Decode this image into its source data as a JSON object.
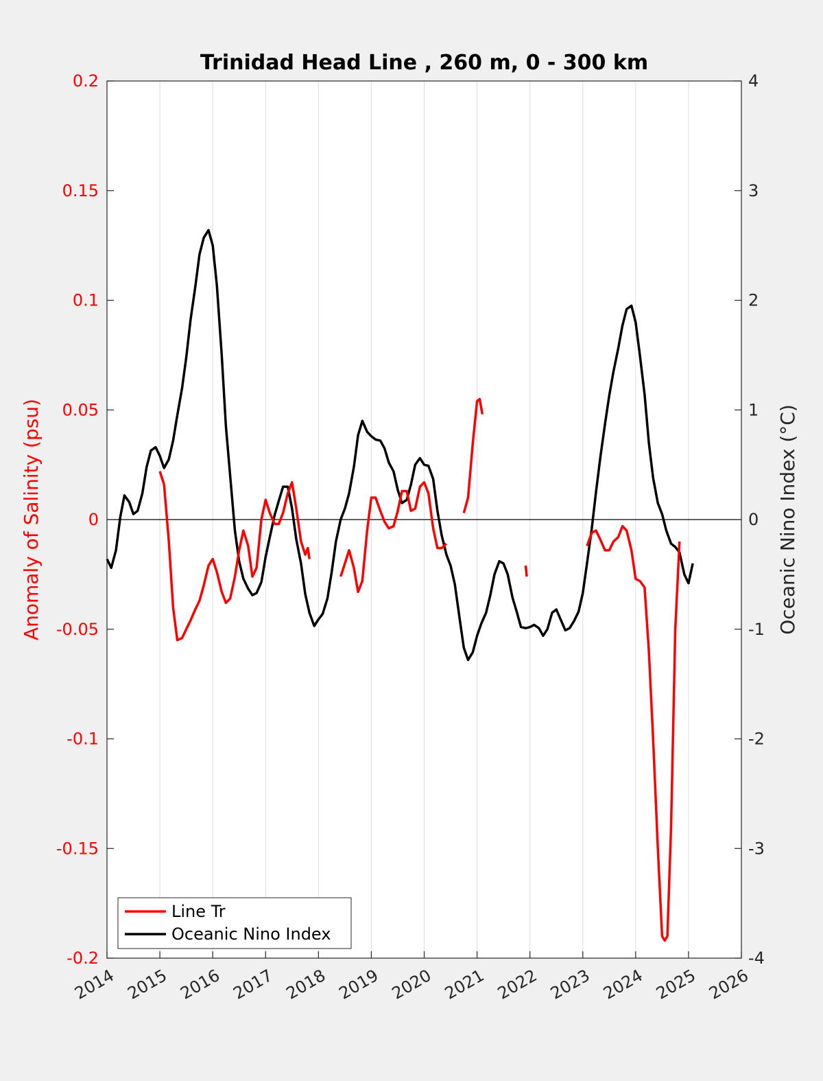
{
  "chart_data": {
    "type": "line",
    "title": "Trinidad Head Line , 260 m, 0 - 300 km",
    "ylabel": "Anomaly of Salinity (psu)",
    "y2label": "Oceanic Nino Index (°C)",
    "xlim": [
      2014,
      2026
    ],
    "ylim": [
      -0.2,
      0.2
    ],
    "y2lim": [
      -4,
      4
    ],
    "xticks": [
      "2014",
      "2015",
      "2016",
      "2017",
      "2018",
      "2019",
      "2020",
      "2021",
      "2022",
      "2023",
      "2024",
      "2025",
      "2026"
    ],
    "yticks": [
      "-0.2",
      "-0.15",
      "-0.1",
      "-0.05",
      "0",
      "0.05",
      "0.1",
      "0.15",
      "0.2"
    ],
    "y2ticks": [
      "-4",
      "-3",
      "-2",
      "-1",
      "0",
      "1",
      "2",
      "3",
      "4"
    ],
    "grid": "vertical",
    "legend_position": "bottom-left",
    "colors": {
      "salinity": "#ff0000",
      "oni": "#000000",
      "zero_line": "#000000"
    },
    "series": [
      {
        "name": "Line Tr",
        "axis": "left",
        "segments": [
          [
            [
              2015.0,
              0.022
            ],
            [
              2015.08,
              0.016
            ],
            [
              2015.17,
              -0.01
            ],
            [
              2015.25,
              -0.04
            ],
            [
              2015.33,
              -0.055
            ],
            [
              2015.42,
              -0.054
            ],
            [
              2015.5,
              -0.05
            ],
            [
              2015.58,
              -0.046
            ],
            [
              2015.67,
              -0.041
            ],
            [
              2015.75,
              -0.037
            ],
            [
              2015.83,
              -0.03
            ],
            [
              2015.92,
              -0.021
            ],
            [
              2016.0,
              -0.018
            ],
            [
              2016.08,
              -0.024
            ],
            [
              2016.17,
              -0.033
            ],
            [
              2016.25,
              -0.038
            ],
            [
              2016.33,
              -0.036
            ],
            [
              2016.42,
              -0.026
            ],
            [
              2016.5,
              -0.014
            ],
            [
              2016.58,
              -0.005
            ],
            [
              2016.67,
              -0.012
            ],
            [
              2016.75,
              -0.026
            ],
            [
              2016.83,
              -0.022
            ],
            [
              2016.92,
              0.0
            ],
            [
              2017.0,
              0.009
            ],
            [
              2017.08,
              0.003
            ],
            [
              2017.17,
              -0.002
            ],
            [
              2017.25,
              -0.002
            ],
            [
              2017.33,
              0.003
            ],
            [
              2017.42,
              0.012
            ],
            [
              2017.5,
              0.017
            ],
            [
              2017.58,
              0.005
            ],
            [
              2017.67,
              -0.01
            ],
            [
              2017.75,
              -0.016
            ],
            [
              2017.8,
              -0.013
            ],
            [
              2017.83,
              -0.018
            ]
          ],
          [
            [
              2018.42,
              -0.026
            ],
            [
              2018.5,
              -0.02
            ],
            [
              2018.58,
              -0.014
            ],
            [
              2018.67,
              -0.022
            ],
            [
              2018.75,
              -0.033
            ],
            [
              2018.83,
              -0.028
            ],
            [
              2018.92,
              -0.005
            ],
            [
              2019.0,
              0.01
            ],
            [
              2019.08,
              0.01
            ],
            [
              2019.17,
              0.004
            ],
            [
              2019.25,
              -0.001
            ],
            [
              2019.33,
              -0.004
            ],
            [
              2019.42,
              -0.003
            ],
            [
              2019.5,
              0.004
            ],
            [
              2019.58,
              0.013
            ],
            [
              2019.67,
              0.013
            ],
            [
              2019.75,
              0.004
            ],
            [
              2019.83,
              0.005
            ],
            [
              2019.92,
              0.015
            ],
            [
              2020.0,
              0.017
            ],
            [
              2020.08,
              0.012
            ],
            [
              2020.17,
              -0.004
            ],
            [
              2020.25,
              -0.013
            ],
            [
              2020.33,
              -0.013
            ],
            [
              2020.42,
              -0.011
            ]
          ],
          [
            [
              2020.75,
              0.003
            ],
            [
              2020.83,
              0.01
            ],
            [
              2020.92,
              0.035
            ],
            [
              2021.0,
              0.054
            ],
            [
              2021.05,
              0.055
            ],
            [
              2021.1,
              0.048
            ]
          ],
          [
            [
              2021.92,
              -0.021
            ],
            [
              2021.94,
              -0.026
            ]
          ],
          [
            [
              2023.08,
              -0.012
            ],
            [
              2023.17,
              -0.006
            ],
            [
              2023.25,
              -0.005
            ],
            [
              2023.33,
              -0.009
            ],
            [
              2023.42,
              -0.014
            ],
            [
              2023.5,
              -0.014
            ],
            [
              2023.58,
              -0.01
            ],
            [
              2023.67,
              -0.008
            ],
            [
              2023.75,
              -0.003
            ],
            [
              2023.83,
              -0.005
            ],
            [
              2023.92,
              -0.014
            ],
            [
              2024.0,
              -0.027
            ],
            [
              2024.08,
              -0.028
            ],
            [
              2024.17,
              -0.031
            ],
            [
              2024.25,
              -0.06
            ],
            [
              2024.33,
              -0.1
            ],
            [
              2024.42,
              -0.15
            ],
            [
              2024.5,
              -0.19
            ],
            [
              2024.55,
              -0.192
            ],
            [
              2024.6,
              -0.19
            ],
            [
              2024.67,
              -0.14
            ],
            [
              2024.75,
              -0.05
            ],
            [
              2024.83,
              -0.01
            ]
          ]
        ]
      },
      {
        "name": "Oceanic Nino Index",
        "axis": "right",
        "segments": [
          [
            [
              2014.0,
              -0.36
            ],
            [
              2014.08,
              -0.44
            ],
            [
              2014.17,
              -0.28
            ],
            [
              2014.25,
              0.02
            ],
            [
              2014.33,
              0.22
            ],
            [
              2014.42,
              0.16
            ],
            [
              2014.5,
              0.05
            ],
            [
              2014.58,
              0.08
            ],
            [
              2014.67,
              0.24
            ],
            [
              2014.75,
              0.48
            ],
            [
              2014.83,
              0.63
            ],
            [
              2014.92,
              0.66
            ],
            [
              2015.0,
              0.58
            ],
            [
              2015.08,
              0.47
            ],
            [
              2015.17,
              0.55
            ],
            [
              2015.25,
              0.72
            ],
            [
              2015.33,
              0.95
            ],
            [
              2015.42,
              1.2
            ],
            [
              2015.5,
              1.48
            ],
            [
              2015.58,
              1.82
            ],
            [
              2015.67,
              2.12
            ],
            [
              2015.75,
              2.42
            ],
            [
              2015.83,
              2.57
            ],
            [
              2015.92,
              2.64
            ],
            [
              2016.0,
              2.5
            ],
            [
              2016.08,
              2.13
            ],
            [
              2016.17,
              1.5
            ],
            [
              2016.25,
              0.85
            ],
            [
              2016.33,
              0.4
            ],
            [
              2016.42,
              -0.1
            ],
            [
              2016.5,
              -0.38
            ],
            [
              2016.58,
              -0.54
            ],
            [
              2016.67,
              -0.63
            ],
            [
              2016.75,
              -0.69
            ],
            [
              2016.83,
              -0.67
            ],
            [
              2016.92,
              -0.57
            ],
            [
              2017.0,
              -0.34
            ],
            [
              2017.08,
              -0.16
            ],
            [
              2017.17,
              0.04
            ],
            [
              2017.25,
              0.17
            ],
            [
              2017.33,
              0.3
            ],
            [
              2017.42,
              0.3
            ],
            [
              2017.5,
              0.1
            ],
            [
              2017.58,
              -0.18
            ],
            [
              2017.67,
              -0.4
            ],
            [
              2017.75,
              -0.68
            ],
            [
              2017.83,
              -0.85
            ],
            [
              2017.92,
              -0.97
            ],
            [
              2018.0,
              -0.91
            ],
            [
              2018.08,
              -0.86
            ],
            [
              2018.17,
              -0.72
            ],
            [
              2018.25,
              -0.48
            ],
            [
              2018.33,
              -0.2
            ],
            [
              2018.42,
              0.0
            ],
            [
              2018.5,
              0.1
            ],
            [
              2018.58,
              0.24
            ],
            [
              2018.67,
              0.48
            ],
            [
              2018.75,
              0.77
            ],
            [
              2018.83,
              0.9
            ],
            [
              2018.92,
              0.8
            ],
            [
              2019.0,
              0.76
            ],
            [
              2019.08,
              0.73
            ],
            [
              2019.17,
              0.72
            ],
            [
              2019.25,
              0.65
            ],
            [
              2019.33,
              0.52
            ],
            [
              2019.42,
              0.44
            ],
            [
              2019.5,
              0.27
            ],
            [
              2019.58,
              0.15
            ],
            [
              2019.67,
              0.18
            ],
            [
              2019.75,
              0.32
            ],
            [
              2019.83,
              0.5
            ],
            [
              2019.92,
              0.56
            ],
            [
              2020.0,
              0.5
            ],
            [
              2020.08,
              0.49
            ],
            [
              2020.17,
              0.37
            ],
            [
              2020.25,
              0.08
            ],
            [
              2020.33,
              -0.14
            ],
            [
              2020.42,
              -0.32
            ],
            [
              2020.5,
              -0.42
            ],
            [
              2020.58,
              -0.59
            ],
            [
              2020.67,
              -0.9
            ],
            [
              2020.75,
              -1.17
            ],
            [
              2020.83,
              -1.28
            ],
            [
              2020.92,
              -1.21
            ],
            [
              2021.0,
              -1.06
            ],
            [
              2021.08,
              -0.95
            ],
            [
              2021.17,
              -0.85
            ],
            [
              2021.25,
              -0.69
            ],
            [
              2021.33,
              -0.5
            ],
            [
              2021.42,
              -0.38
            ],
            [
              2021.5,
              -0.4
            ],
            [
              2021.58,
              -0.5
            ],
            [
              2021.67,
              -0.71
            ],
            [
              2021.75,
              -0.84
            ],
            [
              2021.83,
              -0.98
            ],
            [
              2021.92,
              -0.99
            ],
            [
              2022.0,
              -0.98
            ],
            [
              2022.08,
              -0.96
            ],
            [
              2022.17,
              -0.99
            ],
            [
              2022.25,
              -1.06
            ],
            [
              2022.33,
              -1.0
            ],
            [
              2022.42,
              -0.85
            ],
            [
              2022.5,
              -0.82
            ],
            [
              2022.58,
              -0.91
            ],
            [
              2022.67,
              -1.01
            ],
            [
              2022.75,
              -0.99
            ],
            [
              2022.83,
              -0.93
            ],
            [
              2022.92,
              -0.84
            ],
            [
              2023.0,
              -0.67
            ],
            [
              2023.08,
              -0.4
            ],
            [
              2023.17,
              -0.08
            ],
            [
              2023.25,
              0.25
            ],
            [
              2023.33,
              0.56
            ],
            [
              2023.42,
              0.87
            ],
            [
              2023.5,
              1.13
            ],
            [
              2023.58,
              1.35
            ],
            [
              2023.67,
              1.56
            ],
            [
              2023.75,
              1.77
            ],
            [
              2023.83,
              1.92
            ],
            [
              2023.92,
              1.95
            ],
            [
              2024.0,
              1.8
            ],
            [
              2024.08,
              1.5
            ],
            [
              2024.17,
              1.14
            ],
            [
              2024.25,
              0.7
            ],
            [
              2024.33,
              0.38
            ],
            [
              2024.42,
              0.15
            ],
            [
              2024.5,
              0.05
            ],
            [
              2024.58,
              -0.1
            ],
            [
              2024.67,
              -0.22
            ],
            [
              2024.75,
              -0.25
            ],
            [
              2024.83,
              -0.3
            ],
            [
              2024.92,
              -0.5
            ],
            [
              2025.0,
              -0.58
            ],
            [
              2025.08,
              -0.4
            ]
          ]
        ]
      }
    ]
  }
}
